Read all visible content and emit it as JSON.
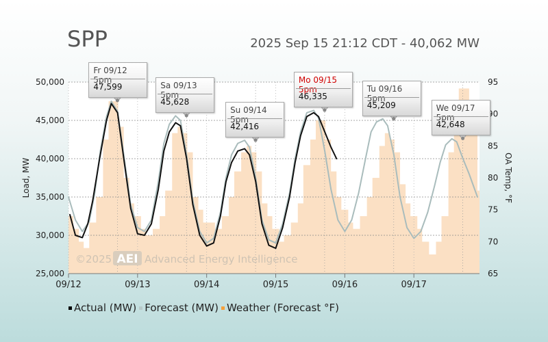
{
  "header": {
    "title": "SPP",
    "subtitle": "2025 Sep 15 21:12 CDT - 40,062 MW"
  },
  "watermark": {
    "prefix": "©2025",
    "logo": "AEI",
    "text": "Advanced Energy Intelligence"
  },
  "legend": [
    {
      "label": "Actual (MW)",
      "color": "#000000"
    },
    {
      "label": "Forecast (MW)",
      "color": "#b8c9c9"
    },
    {
      "label": "Weather (Forecast °F)",
      "color": "#f5a03c"
    }
  ],
  "colors": {
    "actual": "#111111",
    "forecast": "#a9bcbc",
    "weather_fill": "#fbe0c4",
    "today_label": "#d00000"
  },
  "chart_data": {
    "type": "line",
    "x_unit": "day offset from 09/12 00:00",
    "xlim": [
      0,
      5.95
    ],
    "x_ticks": [
      {
        "x": 0,
        "label": "09/12"
      },
      {
        "x": 1,
        "label": "09/13"
      },
      {
        "x": 2,
        "label": "09/14"
      },
      {
        "x": 3,
        "label": "09/15"
      },
      {
        "x": 4,
        "label": "09/16"
      },
      {
        "x": 5,
        "label": "09/17"
      }
    ],
    "ylabel": "Load, MW",
    "ylim": [
      25000,
      50000
    ],
    "y_ticks": [
      25000,
      30000,
      35000,
      40000,
      45000,
      50000
    ],
    "y_tick_labels": [
      "25,000",
      "30,000",
      "35,000",
      "40,000",
      "45,000",
      "50,000"
    ],
    "y2label": "OA Temp, °F",
    "y2lim": [
      65,
      95
    ],
    "y2_ticks": [
      65,
      70,
      75,
      80,
      85,
      90,
      95
    ],
    "y2_tick_labels": [
      "65",
      "70",
      "75",
      "80",
      "85",
      "90",
      "95"
    ],
    "grid": true,
    "series": [
      {
        "name": "Actual (MW)",
        "x": [
          0.02,
          0.1,
          0.2,
          0.28,
          0.35,
          0.45,
          0.55,
          0.62,
          0.71,
          0.8,
          0.9,
          1.0,
          1.1,
          1.2,
          1.3,
          1.38,
          1.46,
          1.55,
          1.62,
          1.71,
          1.8,
          1.9,
          2.0,
          2.1,
          2.2,
          2.28,
          2.36,
          2.45,
          2.55,
          2.62,
          2.71,
          2.8,
          2.9,
          3.0,
          3.1,
          3.2,
          3.28,
          3.36,
          3.45,
          3.55,
          3.62,
          3.71,
          3.8,
          3.88
        ],
        "y": [
          32700,
          30000,
          29700,
          31500,
          34500,
          40000,
          45000,
          47200,
          46000,
          40000,
          33500,
          30200,
          30000,
          31500,
          36000,
          41000,
          43500,
          44700,
          44300,
          40000,
          34000,
          30000,
          28600,
          29000,
          32500,
          37000,
          39500,
          41000,
          41300,
          40500,
          37000,
          31500,
          28700,
          28300,
          31000,
          35000,
          39500,
          43000,
          45500,
          46000,
          45500,
          43500,
          41500,
          40000
        ]
      },
      {
        "name": "Forecast (MW)",
        "x": [
          0.0,
          0.1,
          0.2,
          0.3,
          0.38,
          0.46,
          0.55,
          0.62,
          0.71,
          0.8,
          0.9,
          1.0,
          1.1,
          1.2,
          1.3,
          1.38,
          1.46,
          1.55,
          1.62,
          1.71,
          1.8,
          1.9,
          2.0,
          2.1,
          2.2,
          2.28,
          2.36,
          2.45,
          2.55,
          2.62,
          2.71,
          2.8,
          2.9,
          3.0,
          3.1,
          3.2,
          3.28,
          3.36,
          3.45,
          3.55,
          3.62,
          3.71,
          3.8,
          3.9,
          4.0,
          4.1,
          4.2,
          4.3,
          4.38,
          4.46,
          4.55,
          4.62,
          4.71,
          4.8,
          4.9,
          5.0,
          5.1,
          5.2,
          5.3,
          5.38,
          5.46,
          5.55,
          5.62,
          5.71,
          5.8,
          5.92
        ],
        "y": [
          35000,
          32000,
          30500,
          31800,
          35500,
          41000,
          45500,
          47500,
          46200,
          40500,
          34000,
          31000,
          30500,
          32000,
          37000,
          42000,
          44500,
          45600,
          45000,
          40500,
          34500,
          30500,
          29000,
          29600,
          33000,
          37500,
          40500,
          42000,
          42400,
          41500,
          37500,
          32000,
          29400,
          29000,
          31500,
          35500,
          40000,
          43500,
          46000,
          46300,
          45300,
          41000,
          36000,
          32000,
          30500,
          32000,
          35500,
          40000,
          43500,
          44800,
          45200,
          44300,
          40500,
          35000,
          31000,
          29600,
          30500,
          33000,
          36500,
          39500,
          41800,
          42600,
          42200,
          40000,
          38000,
          35000
        ]
      },
      {
        "name": "Weather (Forecast °F)",
        "axis": "y2",
        "x": [
          0.0,
          0.07,
          0.15,
          0.22,
          0.3,
          0.4,
          0.5,
          0.58,
          0.65,
          0.72,
          0.8,
          0.88,
          0.95,
          1.05,
          1.12,
          1.22,
          1.32,
          1.4,
          1.5,
          1.58,
          1.65,
          1.72,
          1.8,
          1.88,
          1.95,
          2.05,
          2.12,
          2.22,
          2.32,
          2.4,
          2.5,
          2.58,
          2.65,
          2.72,
          2.8,
          2.88,
          2.95,
          3.05,
          3.12,
          3.22,
          3.32,
          3.4,
          3.5,
          3.58,
          3.65,
          3.72,
          3.8,
          3.88,
          3.95,
          4.05,
          4.12,
          4.22,
          4.32,
          4.4,
          4.5,
          4.58,
          4.65,
          4.72,
          4.8,
          4.88,
          4.95,
          5.05,
          5.12,
          5.22,
          5.32,
          5.4,
          5.5,
          5.58,
          5.65,
          5.72,
          5.8,
          5.92
        ],
        "y": [
          74,
          72,
          70,
          69,
          73,
          77,
          86,
          92,
          92,
          88,
          80,
          76,
          74,
          72,
          71,
          72,
          74,
          78,
          87,
          88,
          87,
          84,
          77,
          75,
          73,
          73,
          72,
          74,
          77,
          81,
          84,
          85,
          84,
          81,
          76,
          74,
          72,
          70,
          71,
          73,
          76,
          82,
          86,
          89,
          89,
          86,
          81,
          77,
          75,
          73,
          72,
          74,
          77,
          80,
          85,
          87,
          86,
          84,
          79,
          76,
          74,
          72,
          70,
          68,
          70,
          74,
          84,
          91,
          94,
          94,
          88,
          78
        ]
      }
    ],
    "annotations": [
      {
        "label": "Fr 09/12 5pm",
        "value": "47,599",
        "x": 0.708,
        "y": 47599,
        "today": false
      },
      {
        "label": "Sa 09/13 5pm",
        "value": "45,628",
        "x": 1.708,
        "y": 45628,
        "today": false
      },
      {
        "label": "Su 09/14 5pm",
        "value": "42,416",
        "x": 2.708,
        "y": 42416,
        "today": false
      },
      {
        "label": "Mo 09/15 5pm",
        "value": "46,335",
        "x": 3.708,
        "y": 46335,
        "today": true
      },
      {
        "label": "Tu 09/16 5pm",
        "value": "45,209",
        "x": 4.708,
        "y": 45209,
        "today": false
      },
      {
        "label": "We 09/17 5pm",
        "value": "42,648",
        "x": 5.708,
        "y": 42648,
        "today": false
      }
    ]
  }
}
